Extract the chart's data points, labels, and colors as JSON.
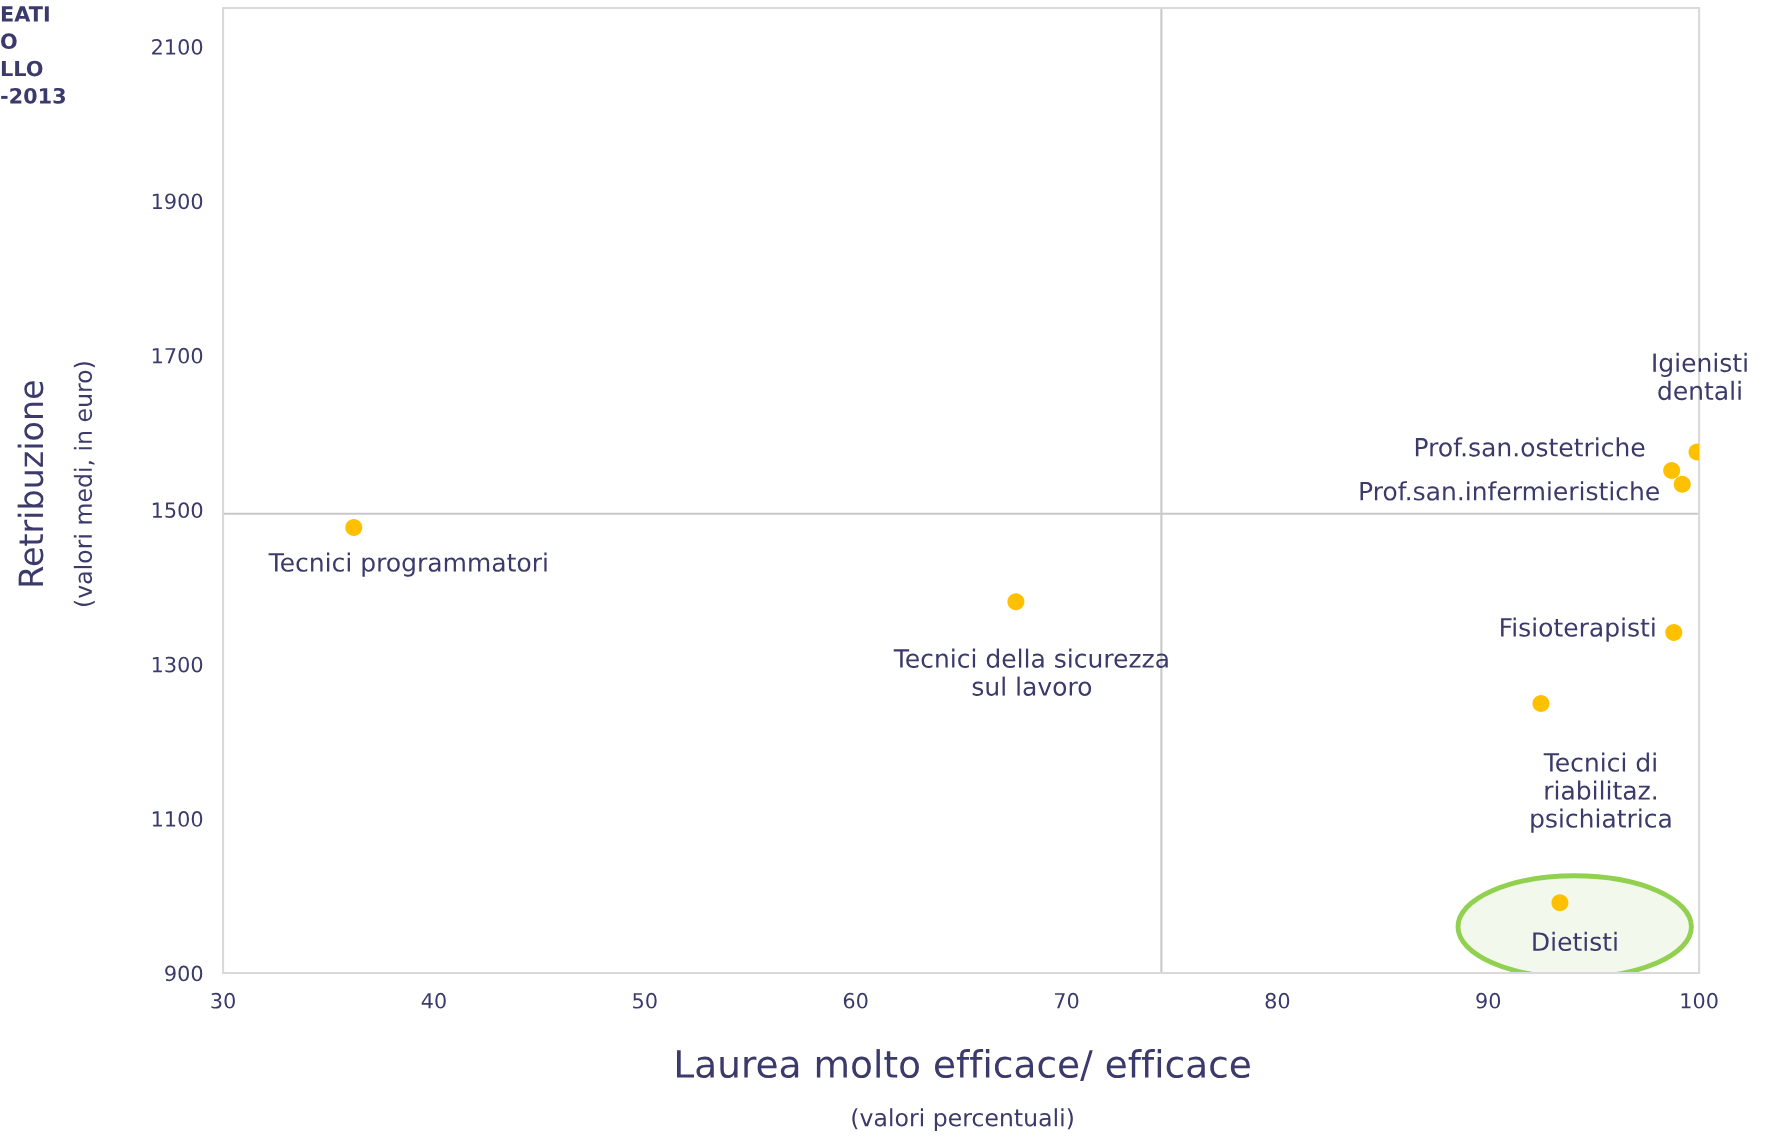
{
  "chart_data": {
    "type": "scatter",
    "xlabel": "Laurea molto efficace/ efficace\n(valori percentuali)",
    "ylabel": "Retribuzione\n(valori medi, in euro)",
    "x": [
      36.2,
      67.6,
      99.9,
      98.7,
      99.2,
      98.8,
      92.5,
      93.4
    ],
    "series": [
      {
        "color": "#ffc000",
        "values": [
          1477,
          1381,
          1575,
          1551,
          1533,
          1341,
          1249,
          991
        ]
      }
    ],
    "xlim": [
      30,
      100
    ],
    "xticks": [
      30,
      40,
      50,
      60,
      70,
      80,
      90,
      100
    ],
    "ylim": [
      900,
      2150
    ],
    "yticks": [
      900,
      1100,
      1300,
      1500,
      1700,
      1900,
      2100
    ],
    "ref_lines": [
      {
        "axis": "x",
        "value": 74.5,
        "color": "#c8c8c8"
      },
      {
        "axis": "y",
        "value": 1495,
        "color": "#c8c8c8"
      }
    ],
    "annotations": [
      "EATI\nO\nLLO\n-2013",
      {
        "text": "Tecnici programmatori",
        "x": 36.2,
        "y": 1477
      },
      {
        "text": "Tecnici della sicurezza\nsul lavoro",
        "x": 67.6,
        "y": 1381
      },
      {
        "text": "Igienisti\ndentali",
        "x": 99.9,
        "y": 1575
      },
      {
        "text": "Prof.san.ostetriche",
        "x": 98.7,
        "y": 1551
      },
      {
        "text": "Prof.san.infermieristiche",
        "x": 99.2,
        "y": 1533
      },
      {
        "text": "Fisioterapisti",
        "x": 98.8,
        "y": 1341
      },
      {
        "text": "Tecnici di\nriabilitaz.\npsichiatrica",
        "x": 92.5,
        "y": 1249
      },
      {
        "text": "Dietisti",
        "x": 93.4,
        "y": 991
      }
    ],
    "grid": false,
    "legend": false,
    "marker": "circle"
  }
}
